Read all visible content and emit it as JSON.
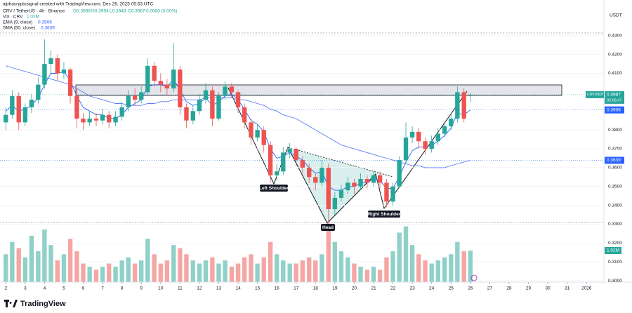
{
  "header": {
    "credit": "alphacryptosignal created with TradingView.com, Dec 26, 2025 05:53 UTC",
    "symbol_line": "CRV / TetherUS · 4h · Binance",
    "ohlc_text": [
      "O0.3986",
      "H0.3994",
      "L0.3948",
      "C0.3987",
      "0.0000 (0.00%)"
    ],
    "vol_text": "Vol · CRV"
  },
  "footer": {
    "brand": "TradingView"
  },
  "chart_data": {
    "type": "candlestick",
    "currency": "USDT",
    "x": [
      2,
      2.33,
      2.67,
      3,
      3.33,
      3.67,
      4,
      4.33,
      4.67,
      5,
      5.33,
      5.67,
      6,
      6.33,
      6.67,
      7,
      7.33,
      7.67,
      8,
      8.33,
      8.67,
      9,
      9.33,
      9.67,
      10,
      10.33,
      10.67,
      11,
      11.33,
      11.67,
      12,
      12.33,
      12.67,
      13,
      13.33,
      13.67,
      14,
      14.33,
      14.67,
      15,
      15.33,
      15.67,
      16,
      16.33,
      16.67,
      17,
      17.33,
      17.67,
      18,
      18.33,
      18.67,
      19,
      19.33,
      19.67,
      20,
      20.33,
      20.67,
      21,
      21.33,
      21.67,
      22,
      22.33,
      22.67,
      23,
      23.33,
      23.67,
      24,
      24.33,
      24.67,
      25,
      25.33,
      25.67,
      26
    ],
    "ohlc": [
      [
        0.384,
        0.392,
        0.38,
        0.388
      ],
      [
        0.388,
        0.401,
        0.386,
        0.398
      ],
      [
        0.398,
        0.4,
        0.38,
        0.384
      ],
      [
        0.384,
        0.394,
        0.382,
        0.392
      ],
      [
        0.392,
        0.399,
        0.389,
        0.396
      ],
      [
        0.396,
        0.408,
        0.394,
        0.404
      ],
      [
        0.404,
        0.428,
        0.402,
        0.415
      ],
      [
        0.415,
        0.422,
        0.41,
        0.418
      ],
      [
        0.418,
        0.42,
        0.406,
        0.41
      ],
      [
        0.41,
        0.416,
        0.407,
        0.412
      ],
      [
        0.412,
        0.413,
        0.394,
        0.398
      ],
      [
        0.398,
        0.402,
        0.381,
        0.386
      ],
      [
        0.386,
        0.389,
        0.38,
        0.384
      ],
      [
        0.384,
        0.39,
        0.382,
        0.386
      ],
      [
        0.386,
        0.389,
        0.382,
        0.385
      ],
      [
        0.385,
        0.391,
        0.383,
        0.388
      ],
      [
        0.388,
        0.39,
        0.381,
        0.384
      ],
      [
        0.384,
        0.39,
        0.382,
        0.387
      ],
      [
        0.387,
        0.395,
        0.385,
        0.392
      ],
      [
        0.392,
        0.401,
        0.39,
        0.398
      ],
      [
        0.398,
        0.402,
        0.393,
        0.396
      ],
      [
        0.396,
        0.403,
        0.394,
        0.4
      ],
      [
        0.4,
        0.418,
        0.398,
        0.414
      ],
      [
        0.414,
        0.416,
        0.403,
        0.406
      ],
      [
        0.406,
        0.41,
        0.4,
        0.404
      ],
      [
        0.404,
        0.407,
        0.398,
        0.402
      ],
      [
        0.402,
        0.426,
        0.4,
        0.412
      ],
      [
        0.412,
        0.414,
        0.388,
        0.392
      ],
      [
        0.392,
        0.394,
        0.381,
        0.385
      ],
      [
        0.385,
        0.393,
        0.383,
        0.39
      ],
      [
        0.39,
        0.399,
        0.388,
        0.396
      ],
      [
        0.396,
        0.405,
        0.394,
        0.401
      ],
      [
        0.401,
        0.403,
        0.382,
        0.386
      ],
      [
        0.386,
        0.4,
        0.385,
        0.398
      ],
      [
        0.398,
        0.406,
        0.396,
        0.403
      ],
      [
        0.403,
        0.405,
        0.397,
        0.4
      ],
      [
        0.4,
        0.401,
        0.389,
        0.392
      ],
      [
        0.392,
        0.394,
        0.381,
        0.384
      ],
      [
        0.384,
        0.386,
        0.372,
        0.376
      ],
      [
        0.376,
        0.383,
        0.374,
        0.38
      ],
      [
        0.38,
        0.382,
        0.368,
        0.372
      ],
      [
        0.372,
        0.374,
        0.352,
        0.356
      ],
      [
        0.356,
        0.362,
        0.353,
        0.358
      ],
      [
        0.358,
        0.371,
        0.356,
        0.368
      ],
      [
        0.368,
        0.373,
        0.365,
        0.37
      ],
      [
        0.37,
        0.371,
        0.361,
        0.364
      ],
      [
        0.364,
        0.366,
        0.357,
        0.36
      ],
      [
        0.36,
        0.362,
        0.352,
        0.355
      ],
      [
        0.355,
        0.357,
        0.348,
        0.352
      ],
      [
        0.352,
        0.364,
        0.35,
        0.36
      ],
      [
        0.36,
        0.362,
        0.331,
        0.338
      ],
      [
        0.338,
        0.347,
        0.335,
        0.344
      ],
      [
        0.344,
        0.351,
        0.342,
        0.348
      ],
      [
        0.348,
        0.355,
        0.346,
        0.352
      ],
      [
        0.352,
        0.354,
        0.346,
        0.35
      ],
      [
        0.35,
        0.357,
        0.348,
        0.354
      ],
      [
        0.354,
        0.356,
        0.349,
        0.352
      ],
      [
        0.352,
        0.358,
        0.35,
        0.356
      ],
      [
        0.356,
        0.358,
        0.349,
        0.352
      ],
      [
        0.352,
        0.354,
        0.339,
        0.342
      ],
      [
        0.342,
        0.352,
        0.34,
        0.35
      ],
      [
        0.35,
        0.366,
        0.349,
        0.364
      ],
      [
        0.364,
        0.384,
        0.362,
        0.376
      ],
      [
        0.376,
        0.382,
        0.373,
        0.379
      ],
      [
        0.379,
        0.381,
        0.37,
        0.374
      ],
      [
        0.374,
        0.376,
        0.367,
        0.37
      ],
      [
        0.37,
        0.377,
        0.368,
        0.374
      ],
      [
        0.374,
        0.381,
        0.372,
        0.378
      ],
      [
        0.378,
        0.384,
        0.376,
        0.382
      ],
      [
        0.382,
        0.389,
        0.38,
        0.386
      ],
      [
        0.386,
        0.403,
        0.384,
        0.4
      ],
      [
        0.4,
        0.402,
        0.384,
        0.386
      ],
      [
        0.3986,
        0.3994,
        0.3948,
        0.3987
      ]
    ],
    "volume": [
      0.9,
      1.3,
      1.1,
      0.8,
      1.5,
      1.0,
      1.7,
      1.2,
      0.7,
      0.9,
      1.4,
      1.0,
      0.6,
      0.5,
      0.4,
      0.5,
      0.6,
      0.5,
      0.7,
      0.8,
      0.6,
      0.7,
      1.4,
      0.9,
      0.6,
      0.7,
      1.2,
      1.1,
      0.9,
      0.7,
      0.6,
      0.7,
      0.8,
      0.6,
      0.7,
      0.5,
      0.6,
      0.8,
      0.9,
      0.6,
      0.8,
      1.3,
      0.9,
      0.7,
      0.6,
      0.6,
      0.7,
      0.8,
      0.7,
      0.9,
      1.9,
      1.3,
      1.0,
      0.8,
      0.6,
      0.5,
      0.4,
      0.5,
      0.4,
      0.8,
      1.0,
      1.6,
      1.8,
      1.2,
      0.9,
      0.7,
      0.6,
      0.7,
      0.8,
      0.9,
      1.3,
      1.0,
      1.02
    ],
    "volume_label": "1.02M",
    "up_color": "#26a69a",
    "down_color": "#ef5350",
    "volume_up_color": "#8fd1c9",
    "volume_down_color": "#f5a6a4",
    "series": [
      {
        "name": "EMA (9, close)",
        "color": "#2962ff",
        "values": [
          0.39,
          0.393,
          0.39,
          0.391,
          0.393,
          0.397,
          0.404,
          0.41,
          0.41,
          0.411,
          0.406,
          0.398,
          0.392,
          0.39,
          0.388,
          0.388,
          0.386,
          0.386,
          0.388,
          0.392,
          0.394,
          0.396,
          0.403,
          0.404,
          0.404,
          0.403,
          0.407,
          0.401,
          0.395,
          0.393,
          0.394,
          0.397,
          0.393,
          0.395,
          0.398,
          0.399,
          0.396,
          0.391,
          0.385,
          0.383,
          0.379,
          0.37,
          0.365,
          0.366,
          0.368,
          0.366,
          0.364,
          0.36,
          0.357,
          0.358,
          0.35,
          0.348,
          0.348,
          0.35,
          0.35,
          0.352,
          0.352,
          0.354,
          0.353,
          0.349,
          0.349,
          0.355,
          0.363,
          0.369,
          0.371,
          0.371,
          0.372,
          0.374,
          0.377,
          0.381,
          0.389,
          0.388,
          0.3906
        ]
      },
      {
        "name": "SMA (50, close)",
        "color": "#5c7cfa",
        "values": [
          0.414,
          0.413,
          0.412,
          0.411,
          0.41,
          0.409,
          0.408,
          0.407,
          0.406,
          0.405,
          0.404,
          0.402,
          0.4,
          0.398,
          0.397,
          0.396,
          0.395,
          0.394,
          0.394,
          0.393,
          0.393,
          0.393,
          0.394,
          0.394,
          0.395,
          0.395,
          0.396,
          0.396,
          0.396,
          0.396,
          0.396,
          0.397,
          0.397,
          0.397,
          0.397,
          0.397,
          0.396,
          0.396,
          0.395,
          0.394,
          0.393,
          0.391,
          0.39,
          0.388,
          0.387,
          0.386,
          0.384,
          0.382,
          0.38,
          0.378,
          0.376,
          0.374,
          0.372,
          0.371,
          0.37,
          0.369,
          0.368,
          0.367,
          0.366,
          0.365,
          0.364,
          0.363,
          0.362,
          0.361,
          0.361,
          0.36,
          0.36,
          0.36,
          0.36,
          0.361,
          0.362,
          0.363,
          0.3639
        ]
      }
    ],
    "price_labels": [
      {
        "name": "CRVUSDT",
        "value": 0.3987,
        "color": "#26a69a"
      },
      {
        "value": 0.3906,
        "color": "#2962ff"
      },
      {
        "value": 0.3639,
        "color": "#2962ff"
      }
    ],
    "countdown": "02:06:47",
    "annotations": [
      "Left Shoulder",
      "Head",
      "Right Shoulder"
    ],
    "xlim": [
      1.7,
      32.9
    ],
    "xticks": [
      2,
      3,
      4,
      5,
      6,
      7,
      8,
      9,
      10,
      11,
      12,
      13,
      14,
      15,
      16,
      17,
      18,
      19,
      20,
      21,
      22,
      23,
      24,
      25,
      26,
      27,
      28,
      29,
      30,
      31,
      {
        "value": 32,
        "label": "2026"
      }
    ],
    "ylim": [
      0.2993,
      0.4489
    ],
    "yticks": [
      {
        "value": 0.43,
        "label": "0.4300"
      },
      {
        "value": 0.42,
        "label": "0.4200"
      },
      {
        "value": 0.41,
        "label": "0.4100"
      },
      {
        "value": 0.38,
        "label": "0.3800"
      },
      {
        "value": 0.37,
        "label": "0.3700"
      },
      {
        "value": 0.36,
        "label": "0.3600"
      },
      {
        "value": 0.35,
        "label": "0.3500"
      },
      {
        "value": 0.34,
        "label": "0.3400"
      },
      {
        "value": 0.33,
        "label": "0.3300"
      },
      {
        "value": 0.32,
        "label": "0.3200"
      },
      {
        "value": 0.31,
        "label": "0.3100"
      },
      {
        "value": 0.3,
        "label": "0.3000"
      }
    ],
    "vlim": [
      0,
      2.2
    ]
  }
}
